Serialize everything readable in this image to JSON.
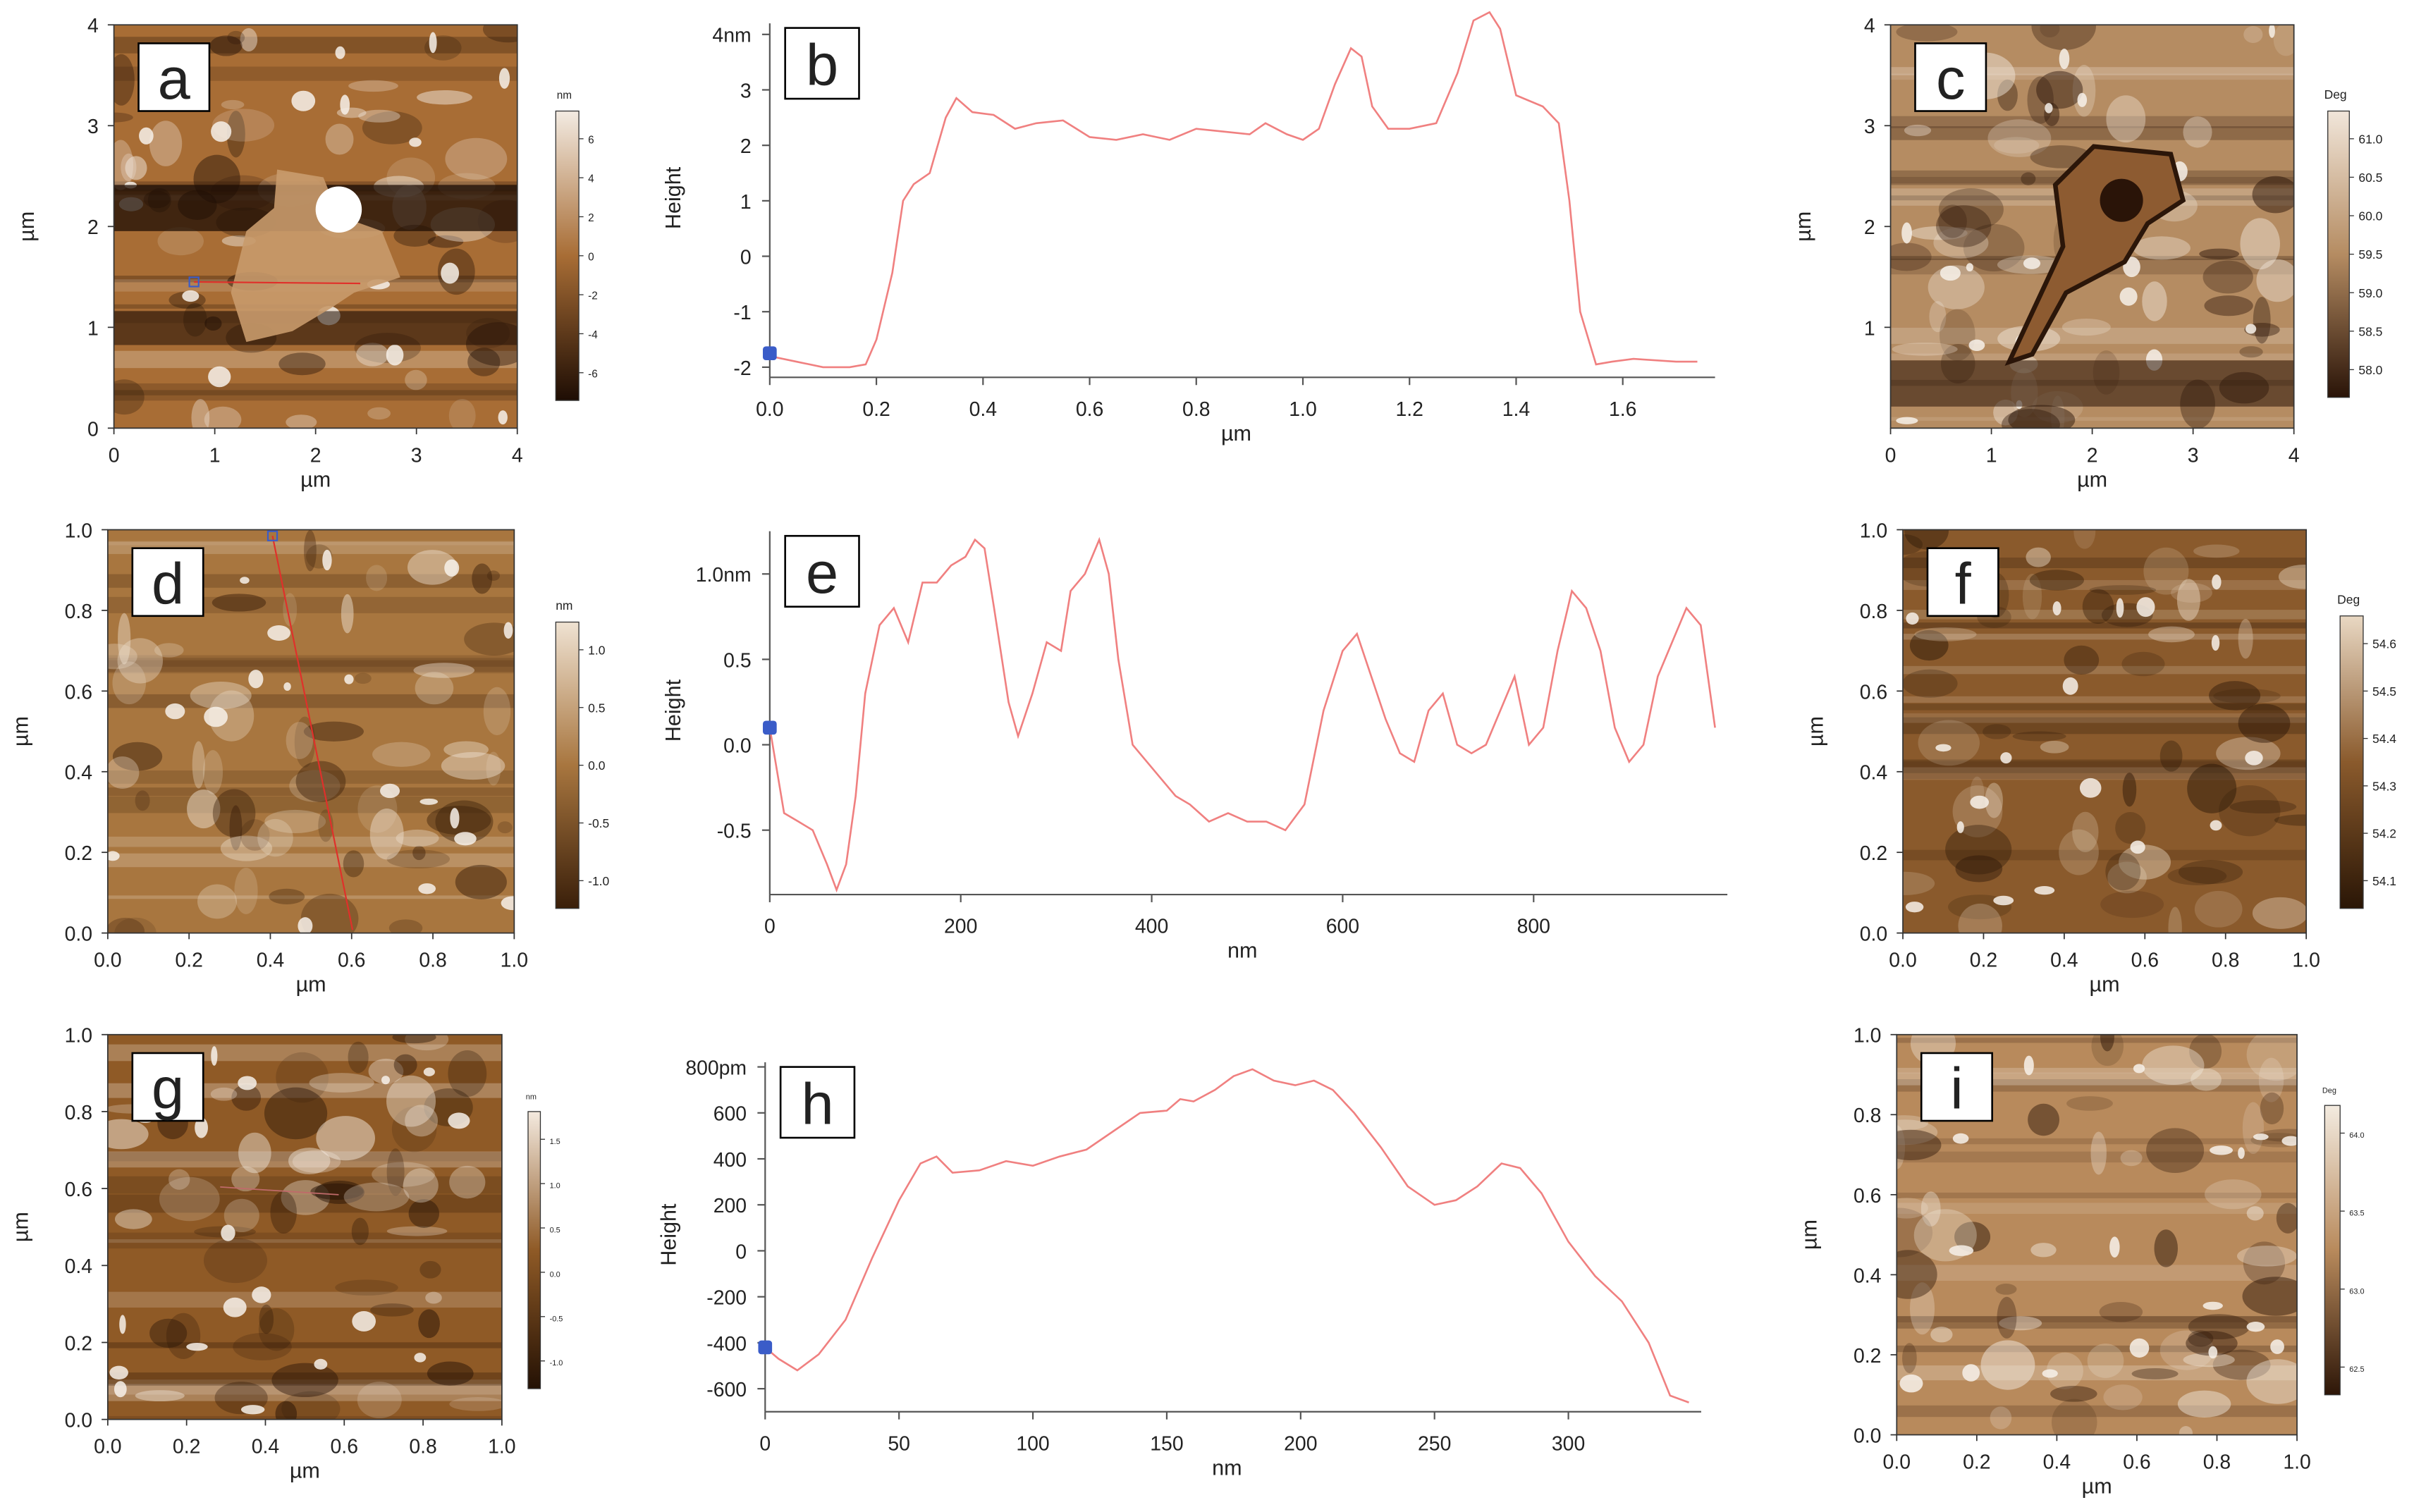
{
  "figure": {
    "panels": [
      {
        "id": "a",
        "kind": "image",
        "label": "a",
        "ylabel": "µm",
        "xlabel": "µm",
        "xticks": [
          "0",
          "1",
          "2",
          "3",
          "4"
        ],
        "yticks": [
          "0",
          "1",
          "2",
          "3",
          "4"
        ],
        "colorbar": {
          "unit": "nm",
          "ticks": [
            "6",
            "4",
            "2",
            "0",
            "-2",
            "-4",
            "-6"
          ]
        },
        "palette": {
          "base": "#a86d35",
          "light": "#f3ebe2",
          "dark": "#1e0d04"
        }
      },
      {
        "id": "b",
        "kind": "profile",
        "label": "b",
        "ylabel": "Height",
        "xlabel": "µm",
        "xticks": [
          "0.0",
          "0.2",
          "0.4",
          "0.6",
          "0.8",
          "1.0",
          "1.2",
          "1.4",
          "1.6"
        ],
        "yticks": [
          "4nm",
          "3",
          "2",
          "1",
          "0",
          "-1",
          "-2"
        ]
      },
      {
        "id": "c",
        "kind": "image",
        "label": "c",
        "ylabel": "µm",
        "xlabel": "µm",
        "xticks": [
          "0",
          "1",
          "2",
          "3",
          "4"
        ],
        "yticks": [
          "1",
          "2",
          "3",
          "4"
        ],
        "colorbar": {
          "unit": "Deg",
          "ticks": [
            "61.0",
            "60.5",
            "60.0",
            "59.5",
            "59.0",
            "58.5",
            "58.0"
          ]
        },
        "palette": {
          "base": "#b58c62",
          "light": "#f1e6da",
          "dark": "#2a1408"
        }
      },
      {
        "id": "d",
        "kind": "image",
        "label": "d",
        "ylabel": "µm",
        "xlabel": "µm",
        "xticks": [
          "0.0",
          "0.2",
          "0.4",
          "0.6",
          "0.8",
          "1.0"
        ],
        "yticks": [
          "0.0",
          "0.2",
          "0.4",
          "0.6",
          "0.8",
          "1.0"
        ],
        "colorbar": {
          "unit": "nm",
          "ticks": [
            "1.0",
            "0.5",
            "0.0",
            "-0.5",
            "-1.0"
          ]
        },
        "palette": {
          "base": "#a8763f",
          "light": "#efe2d2",
          "dark": "#3a1f0a"
        }
      },
      {
        "id": "e",
        "kind": "profile",
        "label": "e",
        "ylabel": "Height",
        "xlabel": "nm",
        "xticks": [
          "0",
          "200",
          "400",
          "600",
          "800"
        ],
        "yticks": [
          "1.0nm",
          "0.5",
          "0.0",
          "-0.5"
        ]
      },
      {
        "id": "f",
        "kind": "image",
        "label": "f",
        "ylabel": "µm",
        "xlabel": "µm",
        "xticks": [
          "0.0",
          "0.2",
          "0.4",
          "0.6",
          "0.8",
          "1.0"
        ],
        "yticks": [
          "0.0",
          "0.2",
          "0.4",
          "0.6",
          "0.8",
          "1.0"
        ],
        "colorbar": {
          "unit": "Deg",
          "ticks": [
            "54.6",
            "54.5",
            "54.4",
            "54.3",
            "54.2",
            "54.1"
          ]
        },
        "palette": {
          "base": "#8a5a2c",
          "light": "#e9d8c3",
          "dark": "#2a1606"
        }
      },
      {
        "id": "g",
        "kind": "image",
        "label": "g",
        "ylabel": "µm",
        "xlabel": "µm",
        "xticks": [
          "0.0",
          "0.2",
          "0.4",
          "0.6",
          "0.8",
          "1.0"
        ],
        "yticks": [
          "0.0",
          "0.2",
          "0.4",
          "0.6",
          "0.8",
          "1.0"
        ],
        "colorbar": {
          "unit": "nm",
          "ticks": [
            "1.5",
            "1.0",
            "0.5",
            "0.0",
            "-0.5",
            "-1.0"
          ]
        },
        "palette": {
          "base": "#8f5a26",
          "light": "#f4eadf",
          "dark": "#241104"
        }
      },
      {
        "id": "h",
        "kind": "profile",
        "label": "h",
        "ylabel": "Height",
        "xlabel": "nm",
        "xticks": [
          "0",
          "50",
          "100",
          "150",
          "200",
          "250",
          "300"
        ],
        "yticks": [
          "800pm",
          "600",
          "400",
          "200",
          "0",
          "-200",
          "-400",
          "-600"
        ]
      },
      {
        "id": "i",
        "kind": "image",
        "label": "i",
        "ylabel": "µm",
        "xlabel": "µm",
        "xticks": [
          "0.0",
          "0.2",
          "0.4",
          "0.6",
          "0.8",
          "1.0"
        ],
        "yticks": [
          "0.0",
          "0.2",
          "0.4",
          "0.6",
          "0.8",
          "1.0"
        ],
        "colorbar": {
          "unit": "Deg",
          "ticks": [
            "64.0",
            "63.5",
            "63.0",
            "62.5"
          ]
        },
        "palette": {
          "base": "#b88a5c",
          "light": "#f3ebe0",
          "dark": "#2d1608"
        }
      }
    ]
  },
  "chart_data": [
    {
      "type": "line",
      "panel": "b",
      "xlabel": "µm",
      "ylabel": "Height",
      "xlim": [
        0,
        1.75
      ],
      "ylim": [
        -2.1,
        4.2
      ],
      "series": [
        {
          "color": "#f08080",
          "x": [
            0,
            0.05,
            0.1,
            0.15,
            0.18,
            0.2,
            0.23,
            0.25,
            0.27,
            0.3,
            0.33,
            0.35,
            0.38,
            0.42,
            0.46,
            0.5,
            0.55,
            0.6,
            0.65,
            0.7,
            0.75,
            0.8,
            0.85,
            0.9,
            0.93,
            0.97,
            1.0,
            1.03,
            1.06,
            1.09,
            1.11,
            1.13,
            1.16,
            1.2,
            1.25,
            1.29,
            1.32,
            1.35,
            1.37,
            1.4,
            1.45,
            1.48,
            1.5,
            1.52,
            1.55,
            1.58,
            1.62,
            1.7,
            1.74
          ],
          "y": [
            -1.8,
            -1.9,
            -2.0,
            -2.0,
            -1.95,
            -1.5,
            -0.3,
            1.0,
            1.3,
            1.5,
            2.5,
            2.85,
            2.6,
            2.55,
            2.3,
            2.4,
            2.45,
            2.15,
            2.1,
            2.2,
            2.1,
            2.3,
            2.25,
            2.2,
            2.4,
            2.2,
            2.1,
            2.3,
            3.1,
            3.75,
            3.6,
            2.7,
            2.3,
            2.3,
            2.4,
            3.3,
            4.25,
            4.4,
            4.1,
            2.9,
            2.7,
            2.4,
            1.0,
            -1.0,
            -1.95,
            -1.9,
            -1.85,
            -1.9,
            -1.9
          ]
        }
      ],
      "marker": {
        "x": 0.0,
        "y": -1.75,
        "color": "#3a5cc8"
      }
    },
    {
      "type": "line",
      "panel": "e",
      "xlabel": "nm",
      "ylabel": "Height",
      "xlim": [
        0,
        990
      ],
      "ylim": [
        -0.85,
        1.25
      ],
      "series": [
        {
          "color": "#f08080",
          "x": [
            0,
            15,
            30,
            45,
            60,
            70,
            80,
            90,
            100,
            115,
            130,
            145,
            160,
            175,
            190,
            205,
            215,
            225,
            235,
            250,
            260,
            275,
            290,
            305,
            315,
            330,
            345,
            355,
            365,
            380,
            395,
            410,
            425,
            440,
            460,
            480,
            500,
            520,
            540,
            560,
            580,
            600,
            615,
            630,
            645,
            660,
            675,
            690,
            705,
            720,
            735,
            750,
            765,
            780,
            795,
            810,
            825,
            840,
            855,
            870,
            885,
            900,
            915,
            930,
            945,
            960,
            975,
            990
          ],
          "y": [
            0.1,
            -0.4,
            -0.45,
            -0.5,
            -0.7,
            -0.85,
            -0.7,
            -0.3,
            0.3,
            0.7,
            0.8,
            0.6,
            0.95,
            0.95,
            1.05,
            1.1,
            1.2,
            1.15,
            0.8,
            0.25,
            0.05,
            0.3,
            0.6,
            0.55,
            0.9,
            1.0,
            1.2,
            1.0,
            0.5,
            0.0,
            -0.1,
            -0.2,
            -0.3,
            -0.35,
            -0.45,
            -0.4,
            -0.45,
            -0.45,
            -0.5,
            -0.35,
            0.2,
            0.55,
            0.65,
            0.4,
            0.15,
            -0.05,
            -0.1,
            0.2,
            0.3,
            0.0,
            -0.05,
            0.0,
            0.2,
            0.4,
            0.0,
            0.1,
            0.55,
            0.9,
            0.8,
            0.55,
            0.1,
            -0.1,
            0.0,
            0.4,
            0.6,
            0.8,
            0.7,
            0.1
          ]
        }
      ],
      "marker": {
        "x": 0,
        "y": 0.1,
        "color": "#3a5cc8"
      }
    },
    {
      "type": "line",
      "panel": "h",
      "xlabel": "nm",
      "ylabel": "Height",
      "xlim": [
        0,
        345
      ],
      "ylim": [
        -680,
        820
      ],
      "series": [
        {
          "color": "#f08080",
          "x": [
            0,
            5,
            12,
            20,
            30,
            40,
            50,
            58,
            64,
            70,
            80,
            90,
            100,
            110,
            120,
            130,
            140,
            150,
            155,
            160,
            168,
            175,
            182,
            190,
            198,
            205,
            212,
            220,
            230,
            240,
            250,
            258,
            266,
            275,
            282,
            290,
            300,
            310,
            320,
            330,
            338,
            345
          ],
          "y": [
            -420,
            -470,
            -520,
            -450,
            -300,
            -30,
            220,
            380,
            410,
            340,
            350,
            390,
            370,
            410,
            440,
            520,
            600,
            610,
            660,
            650,
            700,
            760,
            790,
            740,
            720,
            740,
            700,
            600,
            450,
            280,
            200,
            220,
            280,
            380,
            360,
            250,
            40,
            -110,
            -220,
            -400,
            -630,
            -660
          ]
        }
      ],
      "marker": {
        "x": 0,
        "y": -420,
        "color": "#3a5cc8"
      }
    }
  ]
}
